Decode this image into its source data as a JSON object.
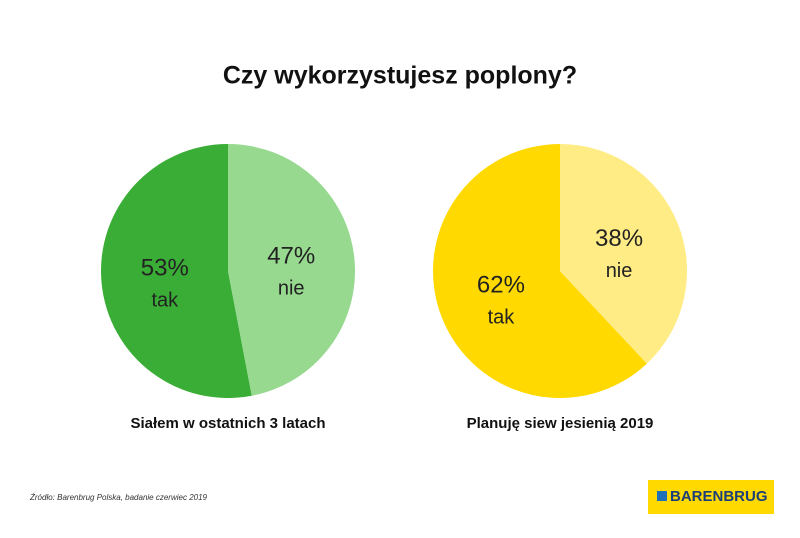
{
  "title": "Czy wykorzystujesz poplony?",
  "chart_data": [
    {
      "type": "pie",
      "title": "Siałem w ostatnich 3 latach",
      "categories": [
        "tak",
        "nie"
      ],
      "values": [
        53,
        47
      ],
      "value_labels": [
        "53%",
        "47%"
      ],
      "colors": [
        "#3aad36",
        "#96d98f"
      ]
    },
    {
      "type": "pie",
      "title": "Planuję siew jesienią 2019",
      "categories": [
        "tak",
        "nie"
      ],
      "values": [
        62,
        38
      ],
      "value_labels": [
        "62%",
        "38%"
      ],
      "colors": [
        "#ffd900",
        "#ffec85"
      ]
    }
  ],
  "source": "Źródło: Barenbrug Polska, badanie czerwiec 2019",
  "logo": "BARENBRUG"
}
